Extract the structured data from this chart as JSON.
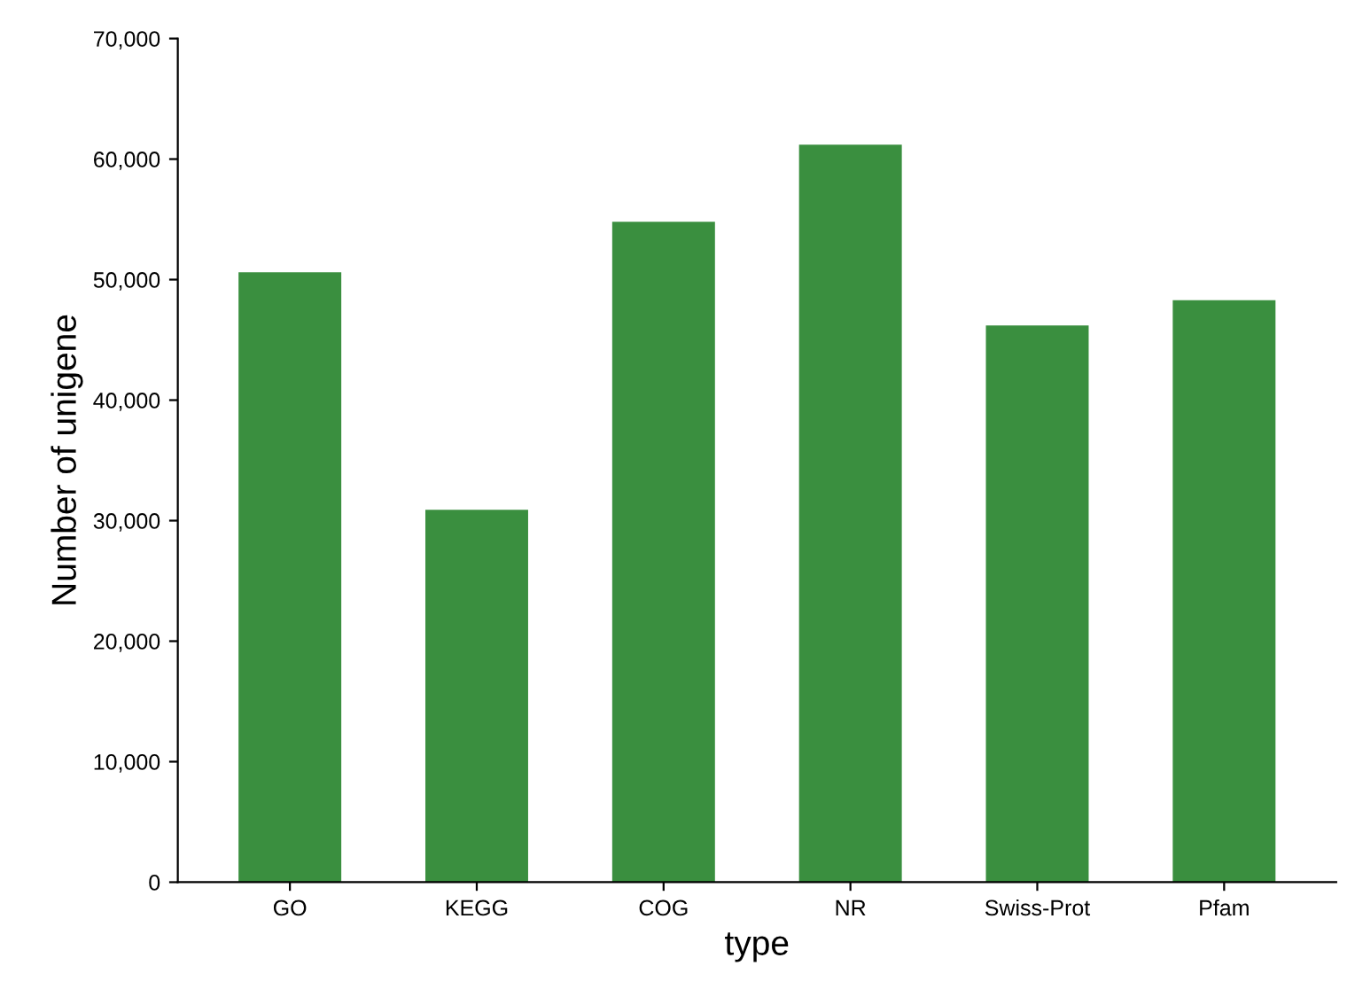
{
  "chart_data": {
    "type": "bar",
    "xlabel": "type",
    "ylabel": "Number of unigene",
    "categories": [
      "GO",
      "KEGG",
      "COG",
      "NR",
      "Swiss-Prot",
      "Pfam"
    ],
    "values": [
      50600,
      30900,
      54800,
      61200,
      46200,
      48300
    ],
    "color": "#3a8f3f",
    "ylim": [
      0,
      70000
    ],
    "yticks": [
      {
        "value": 0,
        "label": "0"
      },
      {
        "value": 10000,
        "label": "10,000"
      },
      {
        "value": 20000,
        "label": "20,000"
      },
      {
        "value": 30000,
        "label": "30,000"
      },
      {
        "value": 40000,
        "label": "40,000"
      },
      {
        "value": 50000,
        "label": "50,000"
      },
      {
        "value": 60000,
        "label": "60,000"
      },
      {
        "value": 70000,
        "label": "70,000"
      }
    ],
    "grid": false,
    "legend": false
  }
}
